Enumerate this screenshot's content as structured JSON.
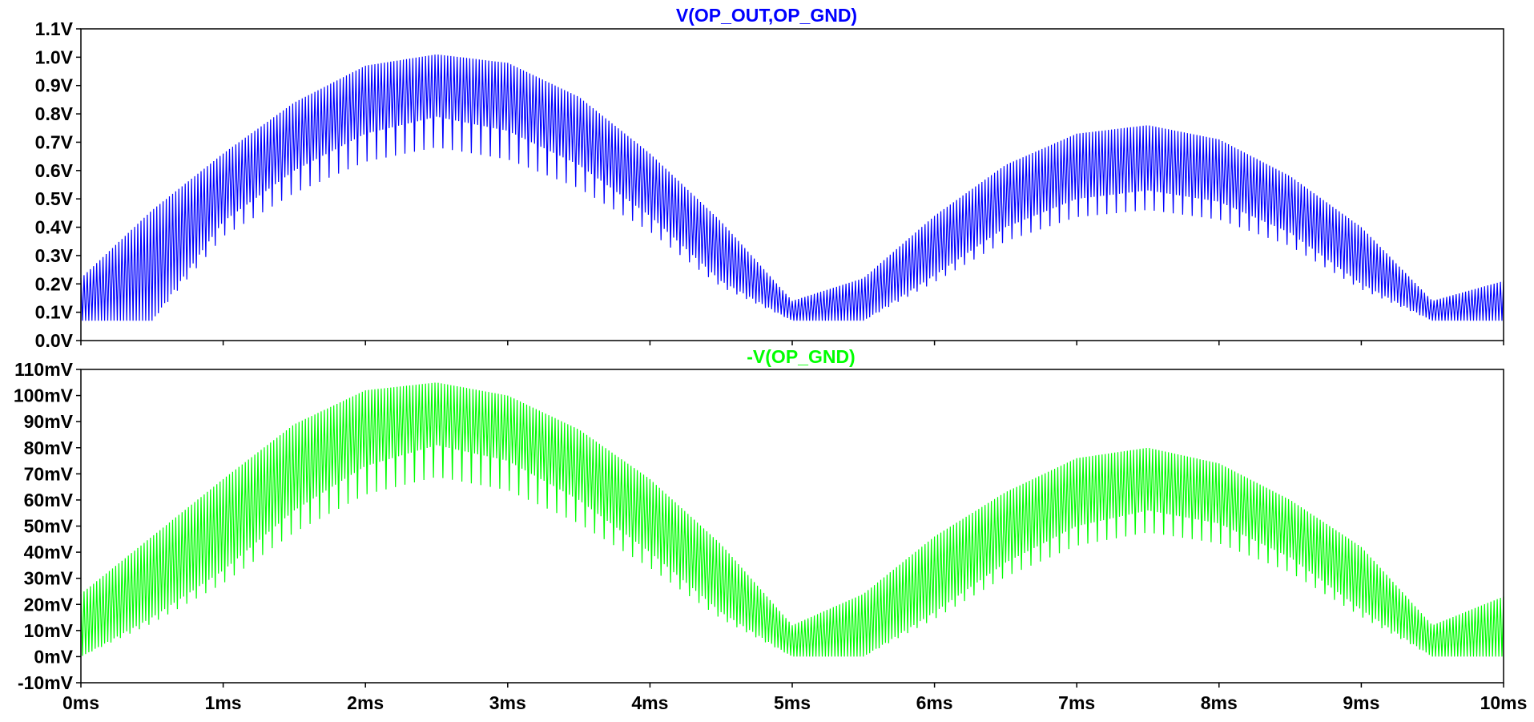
{
  "chart_data": [
    {
      "type": "line",
      "title": "V(OP_OUT,OP_GND)",
      "color": "#0000ff",
      "x_unit": "ms",
      "y_unit": "V",
      "xlim": [
        0,
        10
      ],
      "ylim": [
        0.0,
        1.1
      ],
      "x_ticks": [
        "0ms",
        "1ms",
        "2ms",
        "3ms",
        "4ms",
        "5ms",
        "6ms",
        "7ms",
        "8ms",
        "9ms",
        "10ms"
      ],
      "y_ticks": [
        "0.0V",
        "0.1V",
        "0.2V",
        "0.3V",
        "0.4V",
        "0.5V",
        "0.6V",
        "0.7V",
        "0.8V",
        "0.9V",
        "1.0V",
        "1.1V"
      ],
      "series": [
        {
          "baseline": 0.07,
          "envelope": {
            "x": [
              0,
              0.5,
              1,
              1.5,
              2,
              2.5,
              3,
              3.5,
              4,
              4.5,
              5,
              5.5,
              6,
              6.5,
              7,
              7.5,
              8,
              8.5,
              9,
              9.5,
              10
            ],
            "min": [
              0.07,
              0.07,
              0.42,
              0.6,
              0.73,
              0.79,
              0.74,
              0.62,
              0.44,
              0.21,
              0.07,
              0.07,
              0.23,
              0.4,
              0.5,
              0.53,
              0.49,
              0.38,
              0.2,
              0.07,
              0.07
            ],
            "max": [
              0.22,
              0.46,
              0.66,
              0.84,
              0.97,
              1.01,
              0.98,
              0.86,
              0.66,
              0.42,
              0.14,
              0.22,
              0.44,
              0.62,
              0.73,
              0.76,
              0.71,
              0.58,
              0.4,
              0.14,
              0.21
            ]
          }
        }
      ]
    },
    {
      "type": "line",
      "title": "-V(OP_GND)",
      "color": "#00ff00",
      "x_unit": "ms",
      "y_unit": "mV",
      "xlim": [
        0,
        10
      ],
      "ylim": [
        -10,
        110
      ],
      "x_ticks": [
        "0ms",
        "1ms",
        "2ms",
        "3ms",
        "4ms",
        "5ms",
        "6ms",
        "7ms",
        "8ms",
        "9ms",
        "10ms"
      ],
      "y_ticks": [
        "-10mV",
        "0mV",
        "10mV",
        "20mV",
        "30mV",
        "40mV",
        "50mV",
        "60mV",
        "70mV",
        "80mV",
        "90mV",
        "100mV",
        "110mV"
      ],
      "series": [
        {
          "baseline": 0,
          "envelope": {
            "x": [
              0,
              0.5,
              1,
              1.5,
              2,
              2.5,
              3,
              3.5,
              4,
              4.5,
              5,
              5.5,
              6,
              6.5,
              7,
              7.5,
              8,
              8.5,
              9,
              9.5,
              10
            ],
            "min": [
              0,
              15,
              33,
              56,
              73,
              81,
              75,
              60,
              40,
              17,
              0,
              0,
              17,
              36,
              50,
              56,
              51,
              38,
              18,
              0,
              0
            ],
            "max": [
              24,
              46,
              68,
              89,
              102,
              105,
              100,
              87,
              68,
              43,
              12,
              24,
              46,
              63,
              76,
              80,
              74,
              60,
              42,
              12,
              23
            ]
          }
        }
      ]
    }
  ]
}
